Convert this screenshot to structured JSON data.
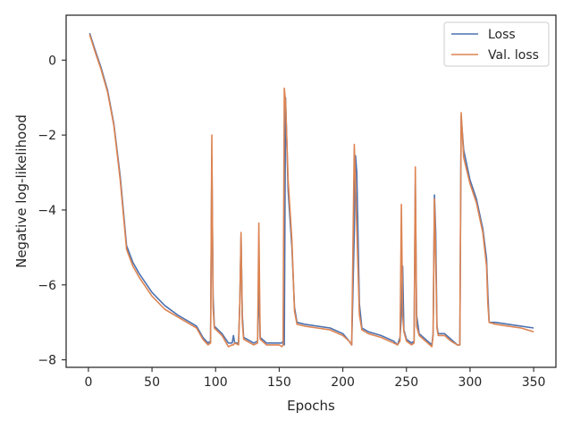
{
  "chart_data": {
    "type": "line",
    "xlabel": "Epochs",
    "ylabel": "Negative log-likelihood",
    "xlim": [
      -17.5,
      367.5
    ],
    "ylim": [
      -8.2,
      1.2
    ],
    "xticks": [
      0,
      50,
      100,
      150,
      200,
      250,
      300,
      350
    ],
    "yticks": [
      -8,
      -6,
      -4,
      -2,
      0
    ],
    "xtick_labels": [
      "0",
      "50",
      "100",
      "150",
      "200",
      "250",
      "300",
      "350"
    ],
    "ytick_labels": [
      "−8",
      "−6",
      "−4",
      "−2",
      "0"
    ],
    "grid": false,
    "legend_position": "top-right",
    "series": [
      {
        "name": "Loss",
        "color": "#4c72b0",
        "points": [
          [
            1,
            0.72
          ],
          [
            5,
            0.3
          ],
          [
            10,
            -0.2
          ],
          [
            15,
            -0.8
          ],
          [
            20,
            -1.7
          ],
          [
            25,
            -3.1
          ],
          [
            30,
            -4.95
          ],
          [
            35,
            -5.4
          ],
          [
            40,
            -5.7
          ],
          [
            50,
            -6.2
          ],
          [
            60,
            -6.55
          ],
          [
            70,
            -6.8
          ],
          [
            80,
            -7.0
          ],
          [
            85,
            -7.1
          ],
          [
            90,
            -7.4
          ],
          [
            94,
            -7.55
          ],
          [
            96,
            -7.5
          ],
          [
            97,
            -2.6
          ],
          [
            98,
            -6.3
          ],
          [
            99,
            -7.1
          ],
          [
            105,
            -7.3
          ],
          [
            110,
            -7.55
          ],
          [
            113,
            -7.55
          ],
          [
            114,
            -7.35
          ],
          [
            115,
            -7.55
          ],
          [
            118,
            -7.55
          ],
          [
            119,
            -6.5
          ],
          [
            120,
            -4.7
          ],
          [
            121,
            -6.8
          ],
          [
            122,
            -7.4
          ],
          [
            130,
            -7.55
          ],
          [
            133,
            -7.5
          ],
          [
            134,
            -6.0
          ],
          [
            135,
            -7.4
          ],
          [
            140,
            -7.55
          ],
          [
            150,
            -7.55
          ],
          [
            152,
            -7.55
          ],
          [
            153,
            -7.5
          ],
          [
            154,
            -7.6
          ],
          [
            155,
            -1.0
          ],
          [
            157,
            -3.5
          ],
          [
            160,
            -5.0
          ],
          [
            162,
            -6.6
          ],
          [
            164,
            -7.0
          ],
          [
            170,
            -7.05
          ],
          [
            180,
            -7.1
          ],
          [
            190,
            -7.15
          ],
          [
            200,
            -7.3
          ],
          [
            205,
            -7.5
          ],
          [
            207,
            -7.6
          ],
          [
            209,
            -4.6
          ],
          [
            210,
            -2.55
          ],
          [
            211,
            -3.0
          ],
          [
            213,
            -6.5
          ],
          [
            215,
            -7.15
          ],
          [
            220,
            -7.25
          ],
          [
            230,
            -7.35
          ],
          [
            240,
            -7.5
          ],
          [
            243,
            -7.6
          ],
          [
            245,
            -7.4
          ],
          [
            246,
            -6.8
          ],
          [
            247,
            -5.5
          ],
          [
            248,
            -7.2
          ],
          [
            250,
            -7.45
          ],
          [
            254,
            -7.55
          ],
          [
            256,
            -7.5
          ],
          [
            257,
            -3.3
          ],
          [
            258,
            -6.8
          ],
          [
            260,
            -7.3
          ],
          [
            265,
            -7.45
          ],
          [
            270,
            -7.6
          ],
          [
            271,
            -7.3
          ],
          [
            272,
            -3.6
          ],
          [
            273,
            -4.6
          ],
          [
            274,
            -7.1
          ],
          [
            275,
            -7.3
          ],
          [
            280,
            -7.3
          ],
          [
            285,
            -7.45
          ],
          [
            290,
            -7.6
          ],
          [
            292,
            -7.6
          ],
          [
            293,
            -1.5
          ],
          [
            295,
            -2.4
          ],
          [
            300,
            -3.2
          ],
          [
            305,
            -3.7
          ],
          [
            310,
            -4.5
          ],
          [
            313,
            -5.3
          ],
          [
            314,
            -6.2
          ],
          [
            315,
            -7.0
          ],
          [
            320,
            -7.0
          ],
          [
            330,
            -7.05
          ],
          [
            340,
            -7.1
          ],
          [
            350,
            -7.15
          ]
        ]
      },
      {
        "name": "Val. loss",
        "color": "#dd8452",
        "points": [
          [
            1,
            0.68
          ],
          [
            5,
            0.25
          ],
          [
            10,
            -0.25
          ],
          [
            15,
            -0.85
          ],
          [
            20,
            -1.75
          ],
          [
            25,
            -3.2
          ],
          [
            30,
            -5.05
          ],
          [
            35,
            -5.5
          ],
          [
            40,
            -5.8
          ],
          [
            50,
            -6.3
          ],
          [
            60,
            -6.65
          ],
          [
            70,
            -6.85
          ],
          [
            80,
            -7.05
          ],
          [
            85,
            -7.15
          ],
          [
            90,
            -7.45
          ],
          [
            94,
            -7.6
          ],
          [
            96,
            -7.55
          ],
          [
            97,
            -2.0
          ],
          [
            98,
            -6.6
          ],
          [
            99,
            -7.15
          ],
          [
            105,
            -7.35
          ],
          [
            110,
            -7.65
          ],
          [
            113,
            -7.6
          ],
          [
            114,
            -7.6
          ],
          [
            115,
            -7.55
          ],
          [
            118,
            -7.6
          ],
          [
            119,
            -6.5
          ],
          [
            120,
            -4.6
          ],
          [
            121,
            -7.0
          ],
          [
            122,
            -7.45
          ],
          [
            130,
            -7.6
          ],
          [
            133,
            -7.55
          ],
          [
            134,
            -4.35
          ],
          [
            135,
            -7.45
          ],
          [
            140,
            -7.6
          ],
          [
            150,
            -7.6
          ],
          [
            152,
            -7.65
          ],
          [
            153,
            -7.6
          ],
          [
            154,
            -0.75
          ],
          [
            155,
            -1.1
          ],
          [
            157,
            -3.2
          ],
          [
            160,
            -4.8
          ],
          [
            162,
            -6.7
          ],
          [
            164,
            -7.05
          ],
          [
            170,
            -7.1
          ],
          [
            180,
            -7.15
          ],
          [
            190,
            -7.2
          ],
          [
            200,
            -7.35
          ],
          [
            205,
            -7.5
          ],
          [
            207,
            -7.6
          ],
          [
            209,
            -2.25
          ],
          [
            210,
            -3.3
          ],
          [
            211,
            -4.5
          ],
          [
            213,
            -6.8
          ],
          [
            215,
            -7.2
          ],
          [
            220,
            -7.3
          ],
          [
            230,
            -7.4
          ],
          [
            240,
            -7.55
          ],
          [
            243,
            -7.6
          ],
          [
            245,
            -7.5
          ],
          [
            246,
            -3.85
          ],
          [
            247,
            -6.8
          ],
          [
            248,
            -7.25
          ],
          [
            250,
            -7.5
          ],
          [
            254,
            -7.6
          ],
          [
            256,
            -7.55
          ],
          [
            257,
            -2.85
          ],
          [
            258,
            -7.1
          ],
          [
            260,
            -7.35
          ],
          [
            265,
            -7.5
          ],
          [
            270,
            -7.65
          ],
          [
            271,
            -7.35
          ],
          [
            272,
            -3.7
          ],
          [
            273,
            -5.3
          ],
          [
            274,
            -7.15
          ],
          [
            275,
            -7.35
          ],
          [
            280,
            -7.35
          ],
          [
            285,
            -7.5
          ],
          [
            290,
            -7.6
          ],
          [
            292,
            -7.6
          ],
          [
            293,
            -1.4
          ],
          [
            295,
            -2.6
          ],
          [
            300,
            -3.3
          ],
          [
            305,
            -3.8
          ],
          [
            310,
            -4.6
          ],
          [
            313,
            -5.5
          ],
          [
            314,
            -6.5
          ],
          [
            315,
            -7.0
          ],
          [
            320,
            -7.05
          ],
          [
            330,
            -7.1
          ],
          [
            340,
            -7.15
          ],
          [
            350,
            -7.25
          ]
        ]
      }
    ]
  }
}
